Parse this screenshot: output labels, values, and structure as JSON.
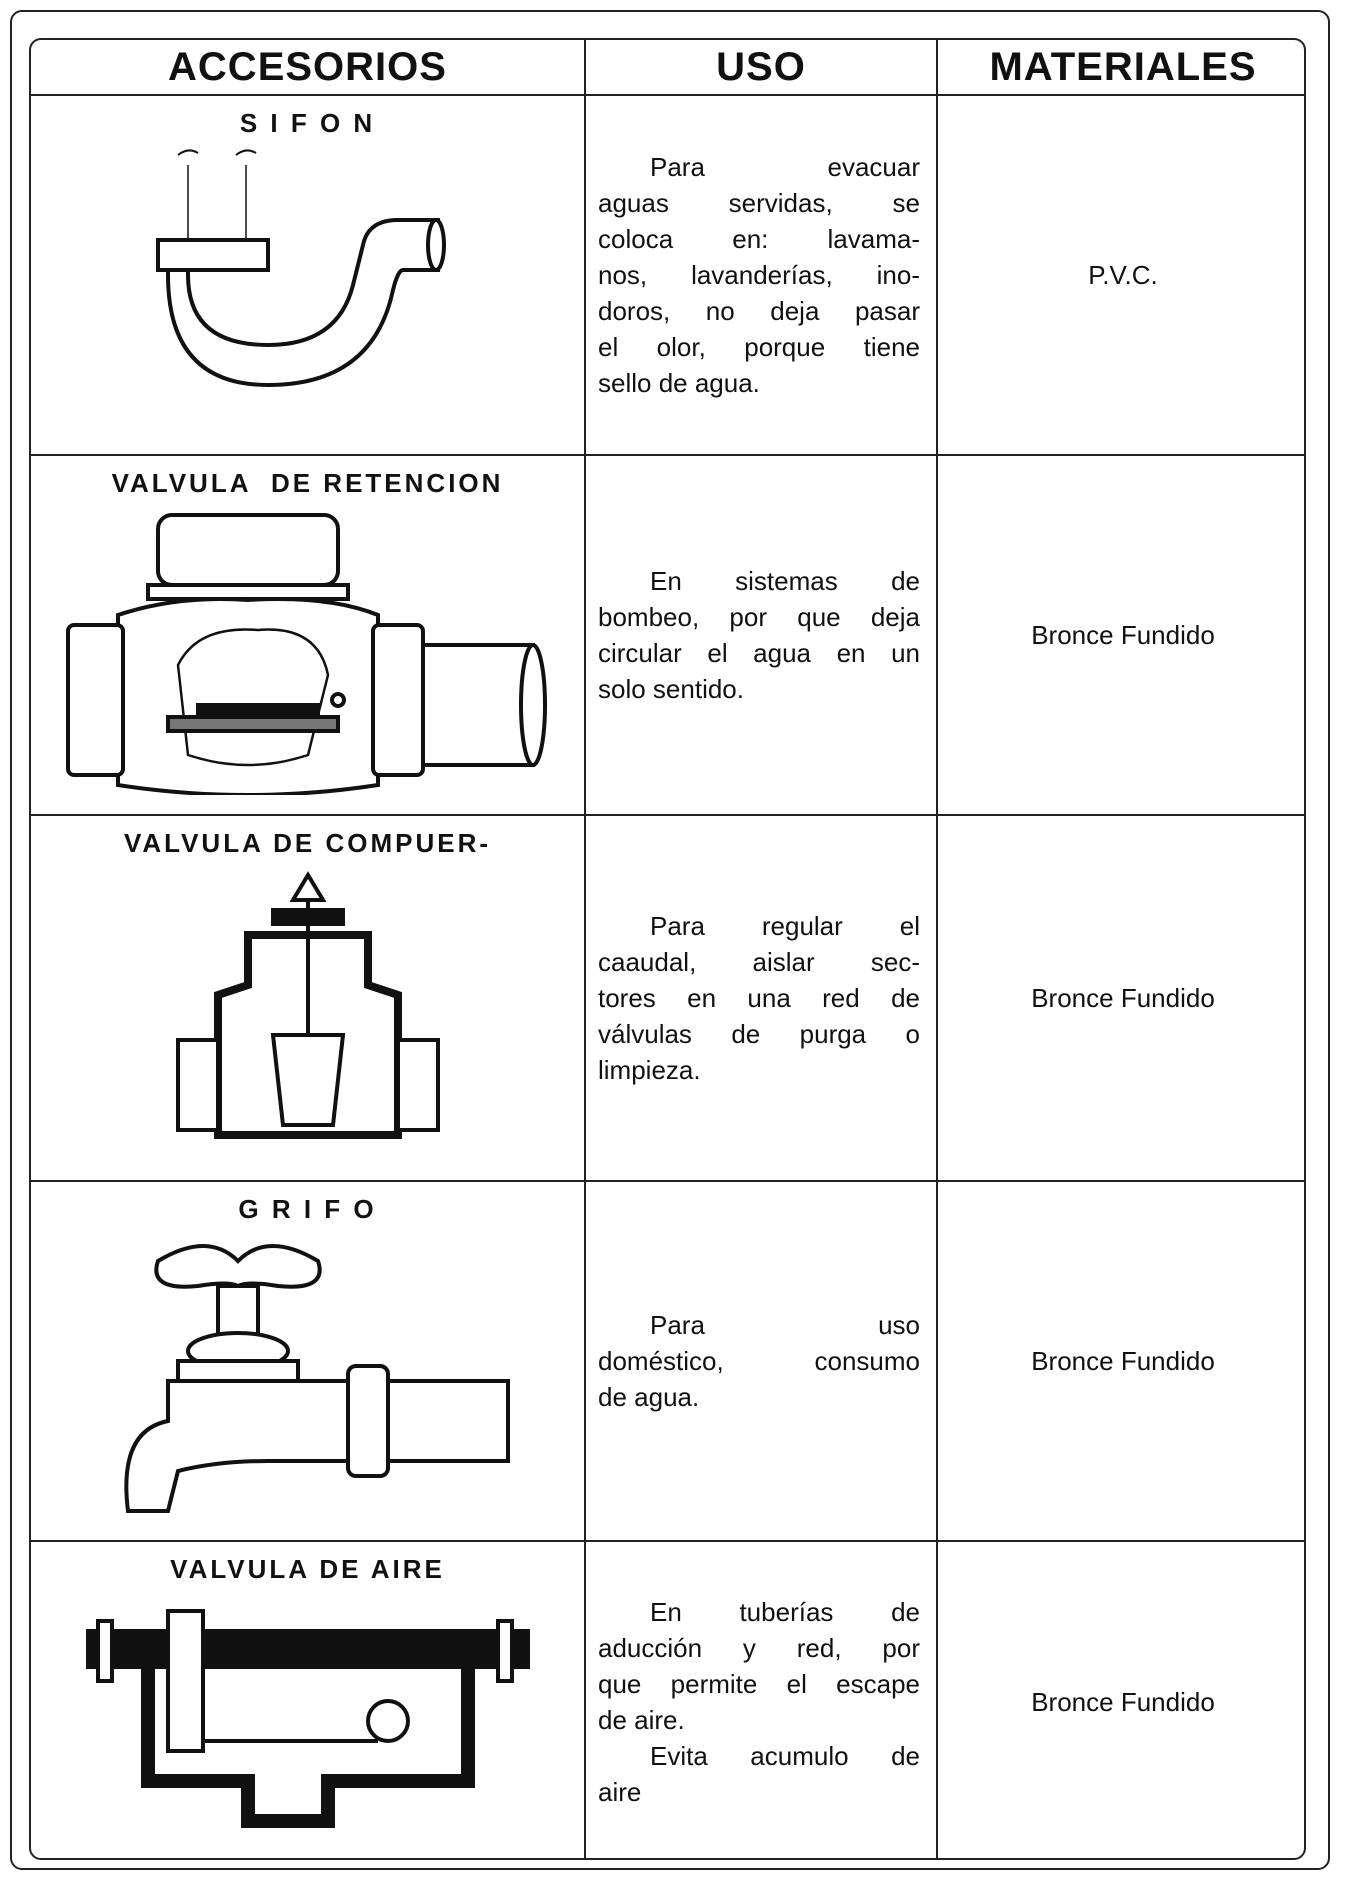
{
  "table": {
    "header": [
      "ACCESORIOS",
      "USO",
      "MATERIALES"
    ],
    "rows": [
      {
        "accesorio": "S I F O N",
        "uso": [
          [
            "Para evacuar",
            "aguas servidas, se",
            "coloca en: lavama-",
            "nos, lavanderías, ino-",
            "doros, no deja pasar",
            "el olor, porque tiene",
            "sello de agua."
          ]
        ],
        "material": "P.V.C."
      },
      {
        "accesorio": "VALVULA  DE RETENCION",
        "uso": [
          [
            "En sistemas de",
            "bombeo, por que deja",
            "circular el agua en un",
            "solo sentido."
          ]
        ],
        "material": "Bronce Fundido"
      },
      {
        "accesorio": "VALVULA DE COMPUER-",
        "uso": [
          [
            "Para regular el",
            "caaudal, aislar sec-",
            "tores en una red de",
            "válvulas de purga o",
            "limpieza."
          ]
        ],
        "material": "Bronce Fundido"
      },
      {
        "accesorio": "G R I F O",
        "uso": [
          [
            "Para uso",
            "doméstico, consumo",
            "de agua."
          ]
        ],
        "material": "Bronce Fundido"
      },
      {
        "accesorio": "VALVULA DE AIRE",
        "uso": [
          [
            "En tuberías de",
            "aducción y red, por",
            "que permite el escape",
            "de aire."
          ],
          [
            "Evita acumulo de",
            "aire"
          ]
        ],
        "material": "Bronce Fundido"
      }
    ]
  }
}
